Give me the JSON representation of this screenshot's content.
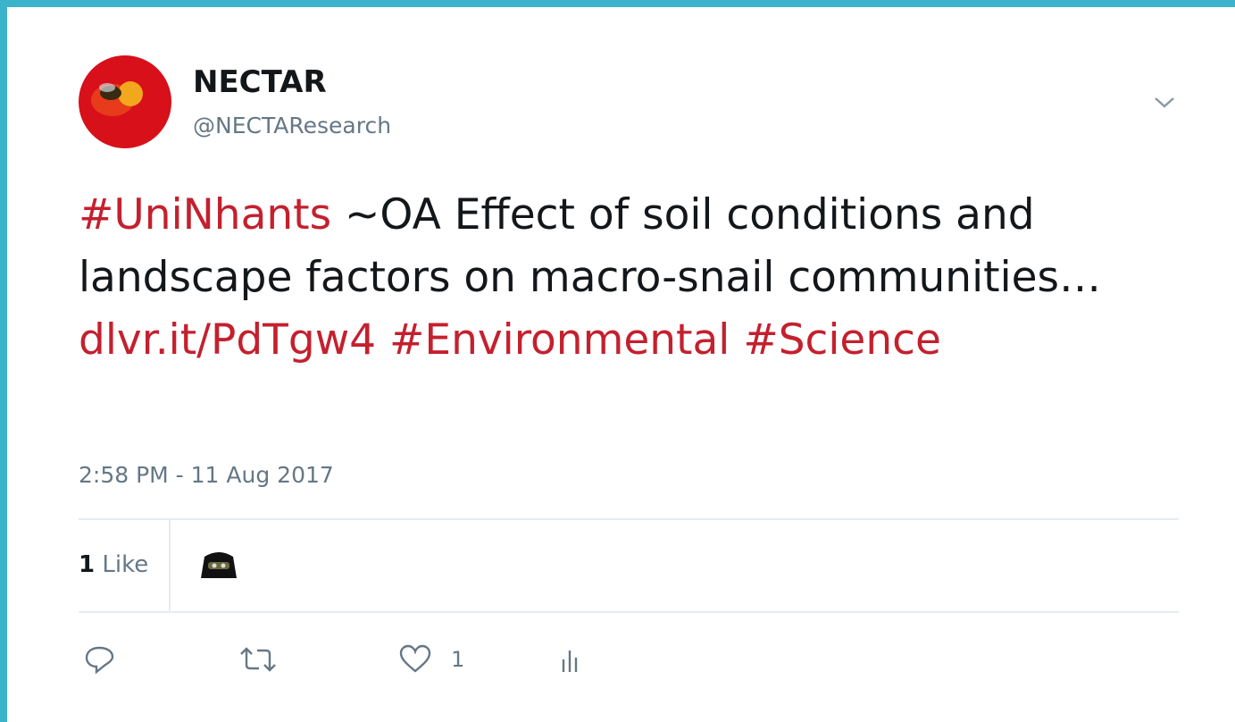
{
  "author": {
    "name": "NECTAR",
    "handle": "@NECTAResearch"
  },
  "tweet": {
    "segments": [
      {
        "text": "#UniNhants",
        "color": "#c4202e"
      },
      {
        "text": "~OA Effect of soil conditions and landscape factors on macro-snail communities…",
        "color": "#14171a"
      },
      {
        "text": "dlvr.it/PdTgw4",
        "color": "#c4202e"
      },
      {
        "text": "#Environmental",
        "color": "#c4202e"
      },
      {
        "text": "#Science",
        "color": "#c4202e"
      }
    ],
    "timestamp": "2:58 PM - 11 Aug 2017"
  },
  "stats": {
    "likes": {
      "count": 1,
      "label": "Like"
    }
  },
  "actions": {
    "like_count": 1
  }
}
